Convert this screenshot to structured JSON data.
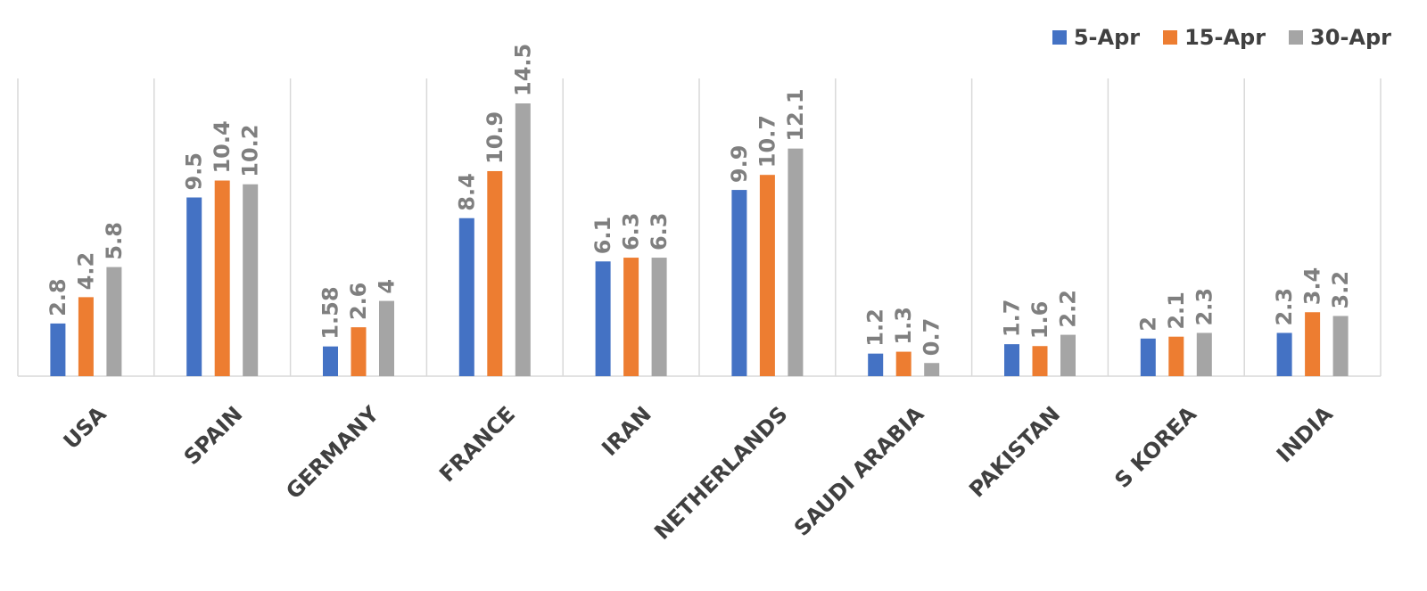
{
  "chart_data": {
    "type": "bar",
    "categories": [
      "USA",
      "SPAIN",
      "GERMANY",
      "FRANCE",
      "IRAN",
      "NETHERLANDS",
      "SAUDI ARABIA",
      "PAKISTAN",
      "S KOREA",
      "INDIA"
    ],
    "series": [
      {
        "name": "5-Apr",
        "color": "#4472c4",
        "values": [
          2.8,
          9.5,
          1.58,
          8.4,
          6.1,
          9.9,
          1.2,
          1.7,
          2,
          2.3
        ],
        "labels": [
          "2.8",
          "9.5",
          "1.58",
          "8.4",
          "6.1",
          "9.9",
          "1.2",
          "1.7",
          "2",
          "2.3"
        ]
      },
      {
        "name": "15-Apr",
        "color": "#ed7d31",
        "values": [
          4.2,
          10.4,
          2.6,
          10.9,
          6.3,
          10.7,
          1.3,
          1.6,
          2.1,
          3.4
        ],
        "labels": [
          "4.2",
          "10.4",
          "2.6",
          "10.9",
          "6.3",
          "10.7",
          "1.3",
          "1.6",
          "2.1",
          "3.4"
        ]
      },
      {
        "name": "30-Apr",
        "color": "#a5a5a5",
        "values": [
          5.8,
          10.2,
          4,
          14.5,
          6.3,
          12.1,
          0.7,
          2.2,
          2.3,
          3.2
        ],
        "labels": [
          "5.8",
          "10.2",
          "4",
          "14.5",
          "6.3",
          "12.1",
          "0.7",
          "2.2",
          "2.3",
          "3.2"
        ]
      }
    ],
    "ylim": [
      0,
      16
    ],
    "legend_position": "top-right",
    "gridlines": "vertical category separators",
    "value_label_color": "#7f7f7f",
    "axis_label_color": "#404040"
  }
}
